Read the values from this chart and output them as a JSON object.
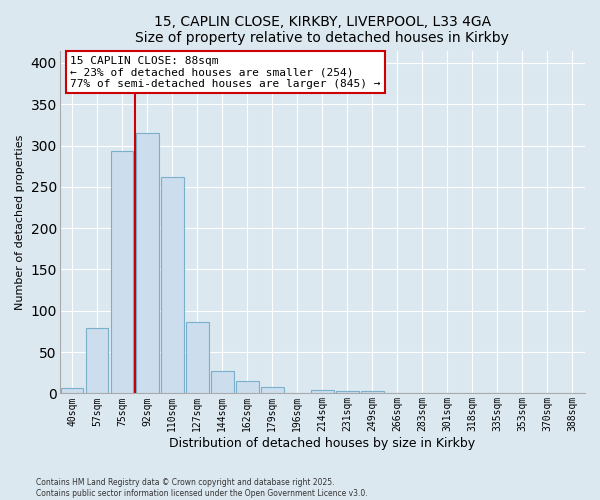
{
  "title": "15, CAPLIN CLOSE, KIRKBY, LIVERPOOL, L33 4GA",
  "subtitle": "Size of property relative to detached houses in Kirkby",
  "xlabel": "Distribution of detached houses by size in Kirkby",
  "ylabel": "Number of detached properties",
  "bar_labels": [
    "40sqm",
    "57sqm",
    "75sqm",
    "92sqm",
    "110sqm",
    "127sqm",
    "144sqm",
    "162sqm",
    "179sqm",
    "196sqm",
    "214sqm",
    "231sqm",
    "249sqm",
    "266sqm",
    "283sqm",
    "301sqm",
    "318sqm",
    "335sqm",
    "353sqm",
    "370sqm",
    "388sqm"
  ],
  "bar_values": [
    7,
    79,
    293,
    315,
    262,
    87,
    27,
    15,
    8,
    0,
    4,
    3,
    3,
    0,
    0,
    0,
    0,
    0,
    0,
    0,
    1
  ],
  "bar_color": "#ccdded",
  "bar_edge_color": "#7ab0cc",
  "vline_color": "#cc0000",
  "annotation_title": "15 CAPLIN CLOSE: 88sqm",
  "annotation_line1": "← 23% of detached houses are smaller (254)",
  "annotation_line2": "77% of semi-detached houses are larger (845) →",
  "annotation_box_facecolor": "white",
  "annotation_box_edgecolor": "#cc0000",
  "ylim": [
    0,
    415
  ],
  "yticks": [
    0,
    50,
    100,
    150,
    200,
    250,
    300,
    350,
    400
  ],
  "footer1": "Contains HM Land Registry data © Crown copyright and database right 2025.",
  "footer2": "Contains public sector information licensed under the Open Government Licence v3.0.",
  "bg_color": "#dce8f0",
  "grid_color": "white",
  "spine_color": "#aaaaaa"
}
